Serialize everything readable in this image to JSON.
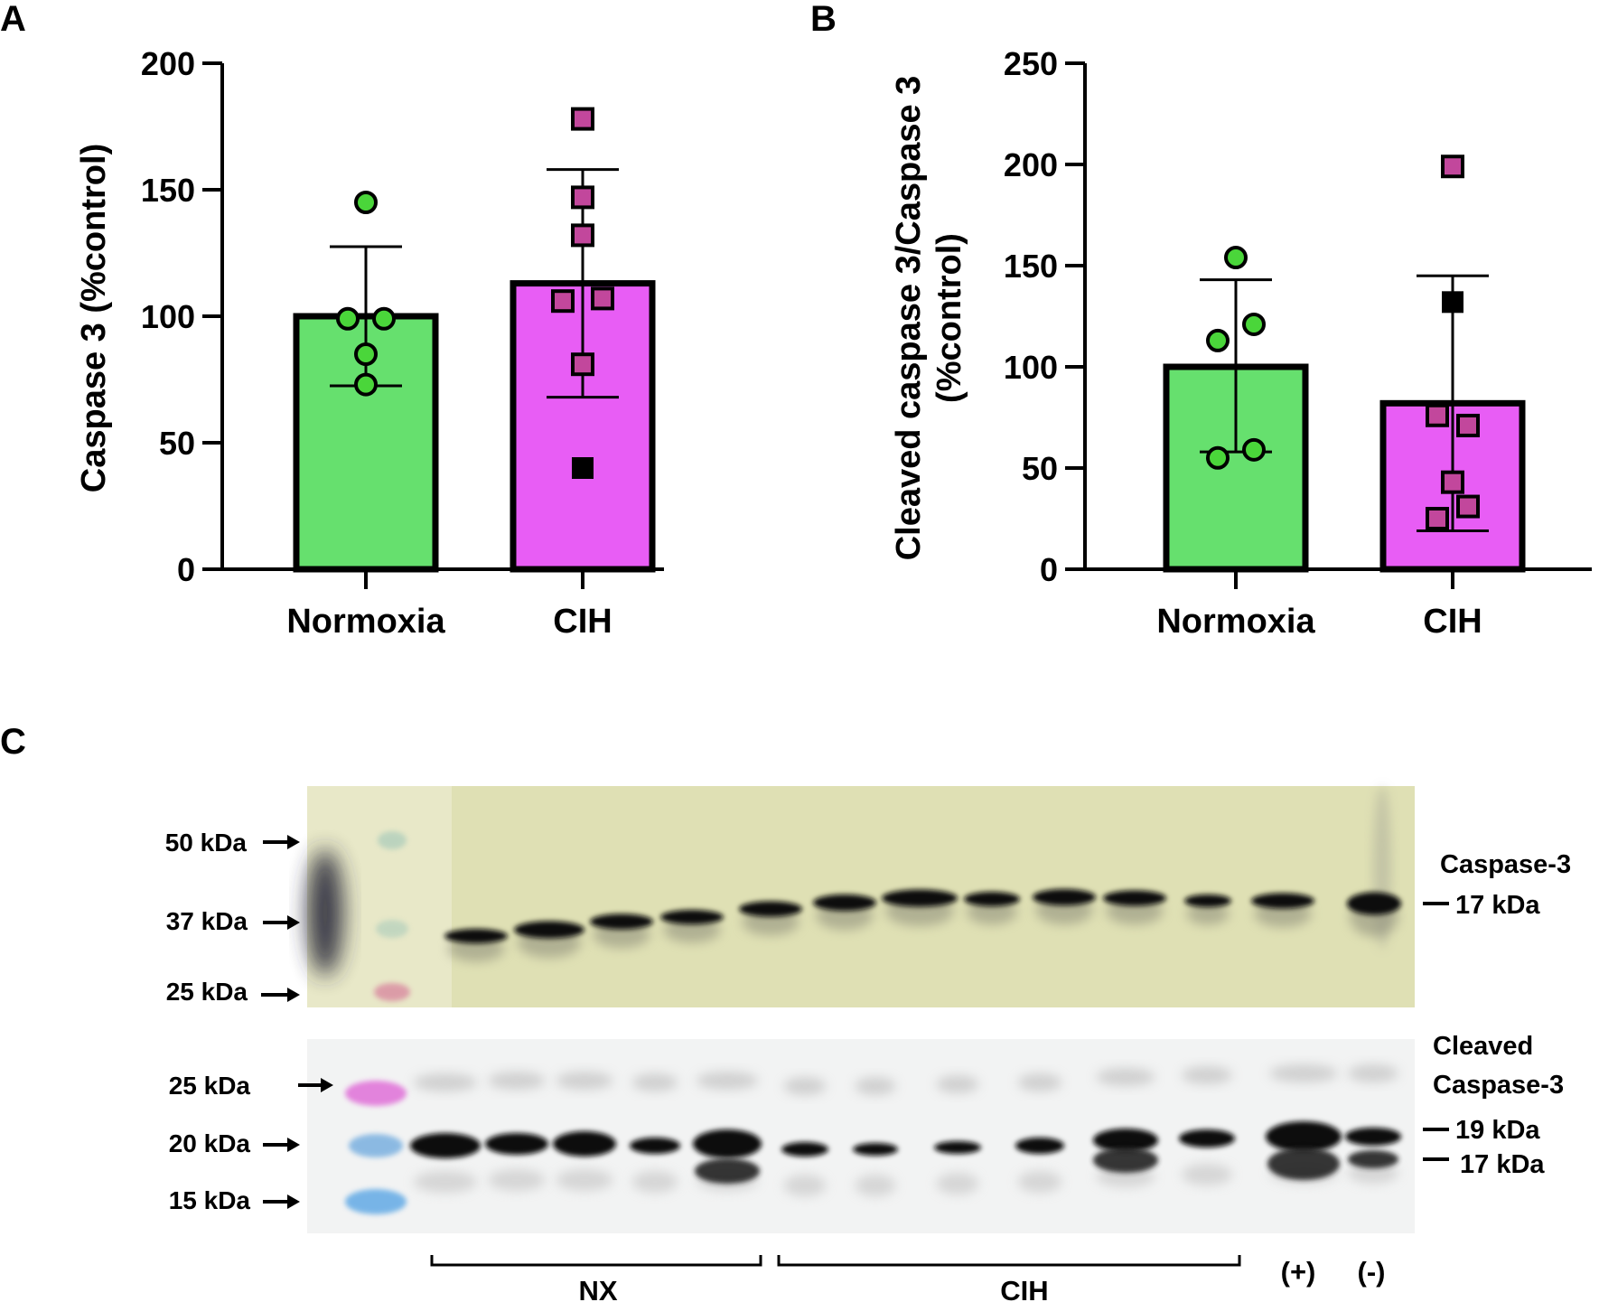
{
  "colors": {
    "normoxia": "#66e06e",
    "cih": "#e85df5",
    "normoxia_point": "#4ad63a",
    "cih_point": "#c2479c",
    "blot_top_bg": "#dfe0b4",
    "blot_bottom_bg": "#f2f3f3"
  },
  "chart_data": [
    {
      "panel": "A",
      "type": "bar",
      "categories": [
        "Normoxia",
        "CIH"
      ],
      "values": [
        100,
        113
      ],
      "error_upper": [
        127.5,
        158
      ],
      "error_lower": [
        72.5,
        68
      ],
      "ylabel": "Caspase 3 (%control)",
      "ylim": [
        0,
        200
      ],
      "yticks": [
        0,
        50,
        100,
        150,
        200
      ],
      "points": [
        {
          "group": "Normoxia",
          "marker": "circle",
          "values": [
            145,
            99,
            99,
            85,
            73
          ],
          "offsets": [
            0,
            -20,
            20,
            0,
            0
          ]
        },
        {
          "group": "CIH",
          "marker": "square",
          "values": [
            178,
            147,
            132,
            106,
            107,
            81
          ],
          "offsets": [
            0,
            0,
            0,
            -22,
            22,
            0
          ]
        },
        {
          "group": "CIH",
          "marker": "square-black",
          "values": [
            40
          ],
          "offsets": [
            0
          ]
        }
      ]
    },
    {
      "panel": "B",
      "type": "bar",
      "categories": [
        "Normoxia",
        "CIH"
      ],
      "values": [
        100,
        82
      ],
      "error_upper": [
        143,
        145
      ],
      "error_lower": [
        58,
        19
      ],
      "ylabel_line1": "Cleaved caspase 3/Caspase 3",
      "ylabel_line2": "(%control)",
      "ylim": [
        0,
        250
      ],
      "yticks": [
        0,
        50,
        100,
        150,
        200,
        250
      ],
      "points": [
        {
          "group": "Normoxia",
          "marker": "circle",
          "values": [
            154,
            121,
            113,
            59,
            55
          ],
          "offsets": [
            0,
            20,
            -20,
            20,
            -20
          ]
        },
        {
          "group": "CIH",
          "marker": "square",
          "values": [
            199,
            76,
            71,
            43,
            31,
            25
          ],
          "offsets": [
            0,
            -17,
            17,
            0,
            17,
            -17
          ]
        },
        {
          "group": "CIH",
          "marker": "square-black",
          "values": [
            132
          ],
          "offsets": [
            0
          ]
        }
      ]
    }
  ],
  "panel_c": {
    "letter": "C",
    "top_blot": {
      "markers": [
        "50 kDa",
        "37 kDa",
        "25 kDa"
      ],
      "name": "Caspase-3",
      "band_label": "17 kDa"
    },
    "bottom_blot": {
      "markers": [
        "25 kDa",
        "20 kDa",
        "15 kDa"
      ],
      "name_line1": "Cleaved",
      "name_line2": "Caspase-3",
      "band_labels": [
        "19 kDa",
        "17 kDa"
      ]
    },
    "groups": {
      "nx": "NX",
      "cih": "CIH",
      "positive": "(+)",
      "negative": "(-)"
    }
  }
}
